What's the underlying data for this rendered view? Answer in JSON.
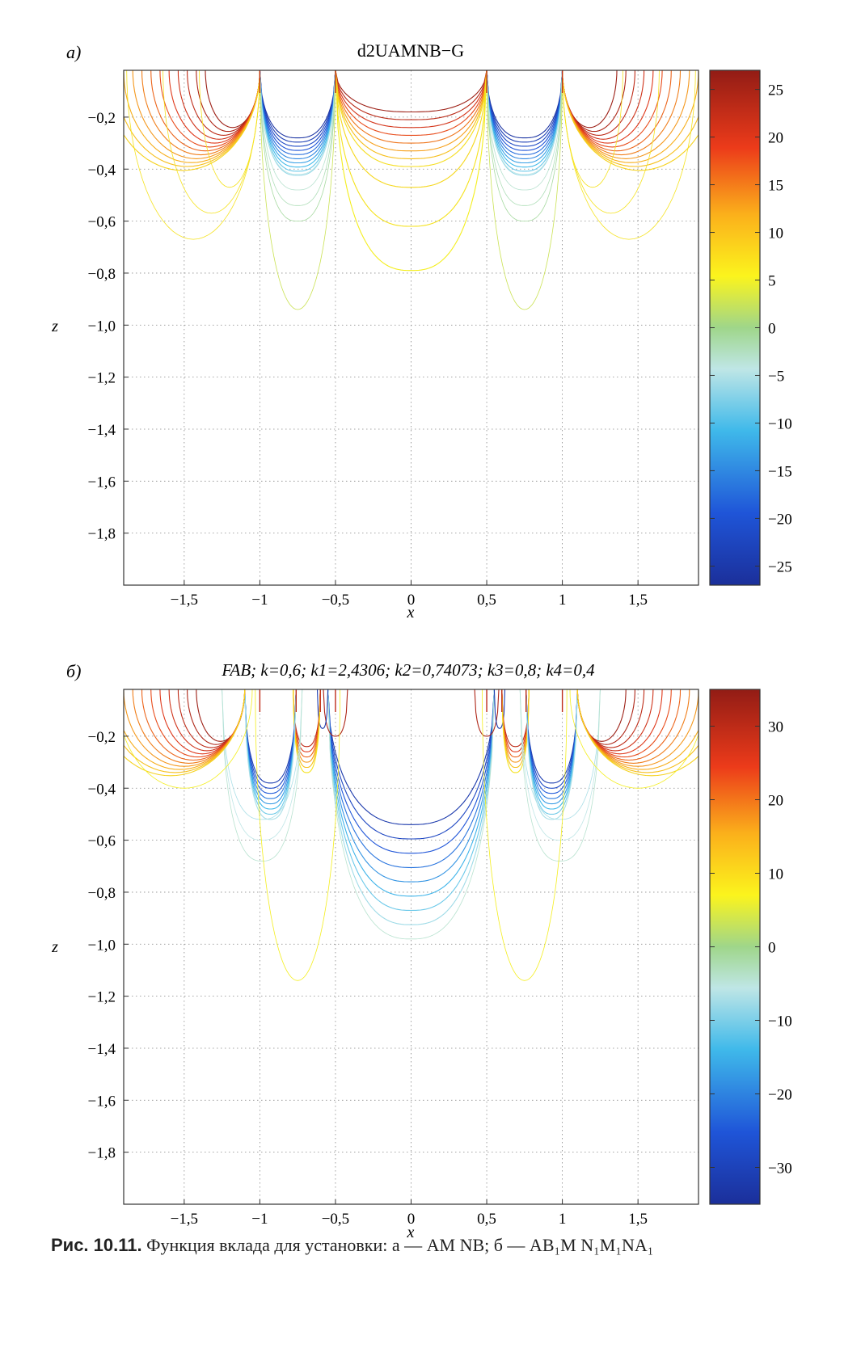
{
  "figure": {
    "caption_label": "Рис. 10.11.",
    "caption_text": "Функция вклада для установки: а — AM NB; б — AB₁M N₁M₁NA₁"
  },
  "chart_data": [
    {
      "type": "contour",
      "panel_label": "a)",
      "title": "d2UAMNB−G",
      "xlabel": "x",
      "ylabel": "z",
      "xlim": [
        -1.9,
        1.9
      ],
      "ylim": [
        -2.0,
        -0.02
      ],
      "x_ticks": [
        -1.5,
        -1,
        -0.5,
        0,
        0.5,
        1,
        1.5
      ],
      "x_tick_labels": [
        "−1,5",
        "−1",
        "−0,5",
        "0",
        "0,5",
        "1",
        "1,5"
      ],
      "y_ticks": [
        -0.2,
        -0.4,
        -0.6,
        -0.8,
        -1.0,
        -1.2,
        -1.4,
        -1.6,
        -1.8
      ],
      "y_tick_labels": [
        "−0,2",
        "−0,4",
        "−0,6",
        "−0,8",
        "−1,0",
        "−1,2",
        "−1,4",
        "−1,6",
        "−1,8"
      ],
      "grid": true,
      "electrodes_x": [
        -1,
        -0.5,
        0.5,
        1
      ],
      "colorbar": {
        "range": [
          -27,
          27
        ],
        "ticks": [
          25,
          20,
          15,
          10,
          5,
          0,
          -5,
          -10,
          -15,
          -20,
          -25
        ],
        "tick_labels": [
          "25",
          "20",
          "15",
          "10",
          "5",
          "0",
          "−5",
          "−10",
          "−15",
          "−20",
          "−25"
        ],
        "colormap": "jet"
      }
    },
    {
      "type": "contour",
      "panel_label": "б)",
      "title": "FAB; k=0,6; k1=2,4306; k2=0,74073; k3=0,8; k4=0,4",
      "xlabel": "x",
      "ylabel": "z",
      "xlim": [
        -1.9,
        1.9
      ],
      "ylim": [
        -2.0,
        -0.02
      ],
      "x_ticks": [
        -1.5,
        -1,
        -0.5,
        0,
        0.5,
        1,
        1.5
      ],
      "x_tick_labels": [
        "−1,5",
        "−1",
        "−0,5",
        "0",
        "0,5",
        "1",
        "1,5"
      ],
      "y_ticks": [
        -0.2,
        -0.4,
        -0.6,
        -0.8,
        -1.0,
        -1.2,
        -1.4,
        -1.6,
        -1.8
      ],
      "y_tick_labels": [
        "−0,2",
        "−0,4",
        "−0,6",
        "−0,8",
        "−1,0",
        "−1,2",
        "−1,4",
        "−1,6",
        "−1,8"
      ],
      "grid": true,
      "electrodes_x": [
        -1.0,
        -0.76,
        -0.6,
        -0.5,
        0.5,
        0.6,
        0.76,
        1.0
      ],
      "colorbar": {
        "range": [
          -35,
          35
        ],
        "ticks": [
          30,
          20,
          10,
          0,
          -10,
          -20,
          -30
        ],
        "tick_labels": [
          "30",
          "20",
          "10",
          "0",
          "−10",
          "−20",
          "−30"
        ],
        "colormap": "jet"
      }
    }
  ]
}
